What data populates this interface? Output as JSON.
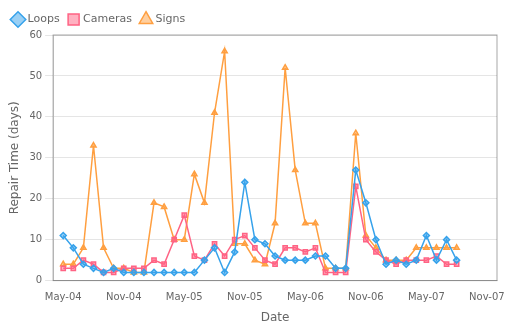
{
  "chart_data": {
    "type": "line",
    "xlabel": "Date",
    "ylabel": "Repair Time (days)",
    "x": [
      0,
      1,
      2,
      3,
      4,
      5,
      6,
      7,
      8,
      9,
      10,
      11,
      12,
      13,
      14,
      15,
      16,
      17,
      18,
      19,
      20,
      21,
      22,
      23,
      24,
      25,
      26,
      27,
      28,
      29,
      30,
      31,
      32,
      33,
      34,
      35,
      36,
      37,
      38,
      39
    ],
    "xlim": [
      -1,
      43
    ],
    "xticks": [
      {
        "value": 0,
        "label": "May-04"
      },
      {
        "value": 6,
        "label": "Nov-04"
      },
      {
        "value": 12,
        "label": "May-05"
      },
      {
        "value": 18,
        "label": "Nov-05"
      },
      {
        "value": 24,
        "label": "May-06"
      },
      {
        "value": 30,
        "label": "Nov-06"
      },
      {
        "value": 36,
        "label": "May-07"
      },
      {
        "value": 42,
        "label": "Nov-07"
      }
    ],
    "ylim": [
      0,
      60
    ],
    "yticks": [
      0,
      10,
      20,
      30,
      40,
      50,
      60
    ],
    "grid": "y",
    "legend": "upper left",
    "series": [
      {
        "name": "Loops",
        "marker": "diamond",
        "values": [
          11,
          8,
          4,
          3,
          2,
          3,
          2,
          2,
          2,
          2,
          2,
          2,
          2,
          2,
          5,
          8,
          2,
          7,
          24,
          10,
          9,
          6,
          5,
          5,
          5,
          6,
          6,
          3,
          3,
          27,
          19,
          10,
          4,
          5,
          4,
          5,
          11,
          5,
          10,
          5
        ]
      },
      {
        "name": "Cameras",
        "marker": "square",
        "values": [
          3,
          3,
          5,
          4,
          2,
          2,
          3,
          3,
          3,
          5,
          4,
          10,
          16,
          6,
          5,
          9,
          6,
          10,
          11,
          8,
          5,
          4,
          8,
          8,
          7,
          8,
          2,
          2,
          2,
          23,
          10,
          7,
          5,
          4,
          5,
          5,
          5,
          6,
          4,
          4
        ]
      },
      {
        "name": "Signs",
        "marker": "triangle",
        "values": [
          4,
          4,
          8,
          33,
          8,
          3,
          3,
          2,
          2,
          19,
          18,
          10,
          10,
          26,
          19,
          41,
          56,
          9,
          9,
          5,
          4,
          14,
          52,
          27,
          14,
          14,
          3,
          3,
          3,
          36,
          11,
          8,
          5,
          5,
          5,
          8,
          8,
          8,
          8,
          8
        ]
      }
    ]
  }
}
